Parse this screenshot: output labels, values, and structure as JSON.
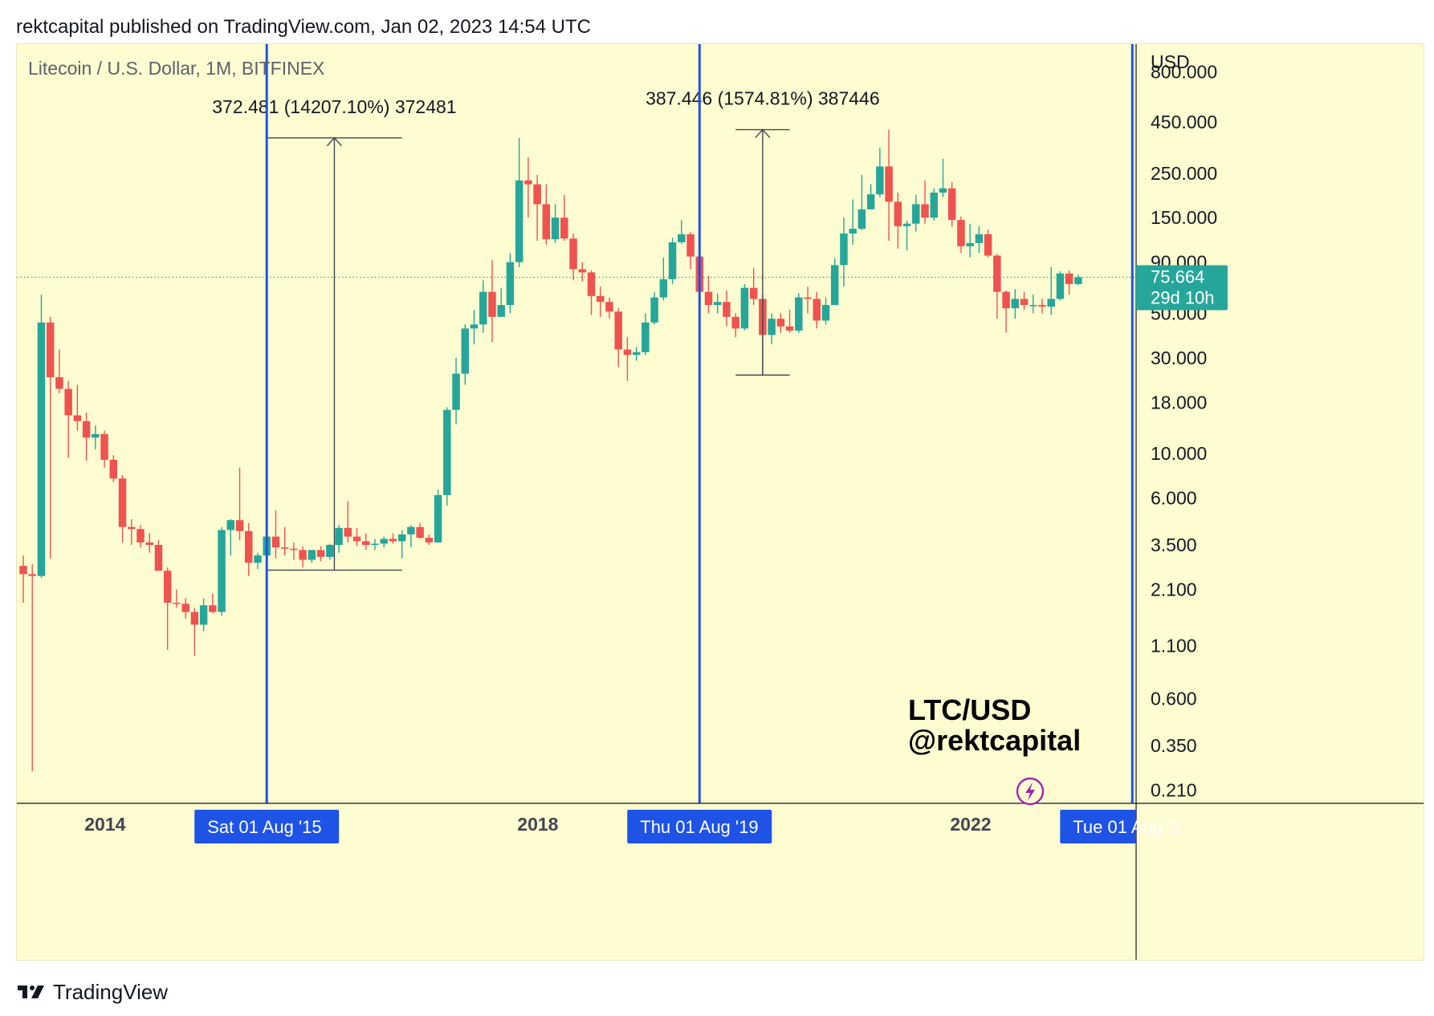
{
  "header": {
    "publisher_line": "rektcapital published on TradingView.com, Jan 02, 2023 14:54 UTC"
  },
  "footer": {
    "brand": "TradingView",
    "logo_icon": "tradingview-logo-icon"
  },
  "colors": {
    "background": "#fefdd2",
    "bull": "#26a69a",
    "bear": "#ef5350",
    "cycle_line": "#1e53e5",
    "price_badge": "#26a69a",
    "measure": "#434651",
    "accent_purple": "#9c27b0"
  },
  "chart_data": {
    "type": "candlestick",
    "symbol_title": "Litecoin / U.S. Dollar, 1M, BITFINEX",
    "currency": "USD",
    "y_scale": "log",
    "ylim": [
      0.18,
      1100
    ],
    "y_ticks": [
      "800.000",
      "450.000",
      "250.000",
      "150.000",
      "90.000",
      "50.000",
      "30.000",
      "18.000",
      "10.000",
      "6.000",
      "3.500",
      "2.100",
      "1.100",
      "0.600",
      "0.350",
      "0.210"
    ],
    "x_labels": [
      "2014",
      "2018",
      "2022"
    ],
    "last_price": {
      "value": "75.664",
      "countdown": "29d 10h",
      "numeric": 75.664
    },
    "cycle_lines": [
      {
        "date": "2015-08",
        "label": "Sat 01 Aug '15"
      },
      {
        "date": "2019-08",
        "label": "Thu 01 Aug '19"
      },
      {
        "date": "2023-08",
        "label": "Tue 01 Aug '2"
      }
    ],
    "measurements": [
      {
        "label": "372.481 (14207.10%) 372481",
        "from": 2.62,
        "to": 375,
        "start": "2015-08",
        "end": "2016-11"
      },
      {
        "label": "387.446 (1574.81%) 387446",
        "from": 24.6,
        "to": 412,
        "start": "2019-12",
        "end": "2020-06"
      }
    ],
    "watermark": {
      "line1": "LTC/USD",
      "line2": "@rektcapital"
    },
    "candles": [
      {
        "t": "2013-05",
        "o": 2.75,
        "h": 3.1,
        "l": 1.8,
        "c": 2.5
      },
      {
        "t": "2013-06",
        "o": 2.5,
        "h": 2.8,
        "l": 0.26,
        "c": 2.45
      },
      {
        "t": "2013-07",
        "o": 2.45,
        "h": 62,
        "l": 2.4,
        "c": 45
      },
      {
        "t": "2013-08",
        "o": 45,
        "h": 48,
        "l": 3.0,
        "c": 24
      },
      {
        "t": "2013-09",
        "o": 24,
        "h": 33,
        "l": 20,
        "c": 21
      },
      {
        "t": "2013-10",
        "o": 21,
        "h": 23,
        "l": 9.5,
        "c": 15.5
      },
      {
        "t": "2013-11",
        "o": 15.5,
        "h": 22,
        "l": 13,
        "c": 14.5
      },
      {
        "t": "2013-12",
        "o": 14.5,
        "h": 16,
        "l": 9.2,
        "c": 12
      },
      {
        "t": "2014-01",
        "o": 12,
        "h": 13.8,
        "l": 10.5,
        "c": 12.5
      },
      {
        "t": "2014-02",
        "o": 12.5,
        "h": 13,
        "l": 8.5,
        "c": 9.3
      },
      {
        "t": "2014-03",
        "o": 9.3,
        "h": 9.8,
        "l": 7.2,
        "c": 7.5
      },
      {
        "t": "2014-04",
        "o": 7.5,
        "h": 7.8,
        "l": 3.6,
        "c": 4.3
      },
      {
        "t": "2014-05",
        "o": 4.3,
        "h": 4.7,
        "l": 3.5,
        "c": 4.2
      },
      {
        "t": "2014-06",
        "o": 4.2,
        "h": 4.4,
        "l": 3.4,
        "c": 3.6
      },
      {
        "t": "2014-07",
        "o": 3.6,
        "h": 4.0,
        "l": 3.2,
        "c": 3.5
      },
      {
        "t": "2014-08",
        "o": 3.5,
        "h": 3.7,
        "l": 2.6,
        "c": 2.6
      },
      {
        "t": "2014-09",
        "o": 2.6,
        "h": 2.7,
        "l": 1.05,
        "c": 1.8
      },
      {
        "t": "2014-10",
        "o": 1.8,
        "h": 2.1,
        "l": 1.7,
        "c": 1.78
      },
      {
        "t": "2014-11",
        "o": 1.78,
        "h": 1.9,
        "l": 1.5,
        "c": 1.62
      },
      {
        "t": "2014-12",
        "o": 1.62,
        "h": 1.7,
        "l": 0.98,
        "c": 1.4
      },
      {
        "t": "2015-01",
        "o": 1.4,
        "h": 1.9,
        "l": 1.3,
        "c": 1.75
      },
      {
        "t": "2015-02",
        "o": 1.75,
        "h": 2.0,
        "l": 1.6,
        "c": 1.62
      },
      {
        "t": "2015-03",
        "o": 1.62,
        "h": 4.3,
        "l": 1.55,
        "c": 4.15
      },
      {
        "t": "2015-04",
        "o": 4.15,
        "h": 4.7,
        "l": 3.1,
        "c": 4.65
      },
      {
        "t": "2015-05",
        "o": 4.65,
        "h": 8.5,
        "l": 3.7,
        "c": 4.1
      },
      {
        "t": "2015-06",
        "o": 4.1,
        "h": 4.5,
        "l": 2.45,
        "c": 2.85
      },
      {
        "t": "2015-07",
        "o": 2.85,
        "h": 3.2,
        "l": 2.65,
        "c": 3.1
      },
      {
        "t": "2015-08",
        "o": 3.1,
        "h": 3.9,
        "l": 2.9,
        "c": 3.85
      },
      {
        "t": "2015-09",
        "o": 3.85,
        "h": 5.2,
        "l": 3.0,
        "c": 3.4
      },
      {
        "t": "2015-10",
        "o": 3.4,
        "h": 4.3,
        "l": 3.1,
        "c": 3.35
      },
      {
        "t": "2015-11",
        "o": 3.35,
        "h": 3.6,
        "l": 2.95,
        "c": 3.3
      },
      {
        "t": "2015-12",
        "o": 3.3,
        "h": 3.45,
        "l": 2.7,
        "c": 2.95
      },
      {
        "t": "2016-01",
        "o": 2.95,
        "h": 3.3,
        "l": 2.85,
        "c": 3.3
      },
      {
        "t": "2016-02",
        "o": 3.3,
        "h": 3.45,
        "l": 2.9,
        "c": 3.05
      },
      {
        "t": "2016-03",
        "o": 3.05,
        "h": 3.55,
        "l": 2.95,
        "c": 3.5
      },
      {
        "t": "2016-04",
        "o": 3.5,
        "h": 4.4,
        "l": 3.2,
        "c": 4.25
      },
      {
        "t": "2016-05",
        "o": 4.25,
        "h": 5.8,
        "l": 3.6,
        "c": 3.85
      },
      {
        "t": "2016-06",
        "o": 3.85,
        "h": 4.25,
        "l": 3.45,
        "c": 3.65
      },
      {
        "t": "2016-07",
        "o": 3.65,
        "h": 4.0,
        "l": 3.3,
        "c": 3.5
      },
      {
        "t": "2016-08",
        "o": 3.5,
        "h": 3.75,
        "l": 3.3,
        "c": 3.55
      },
      {
        "t": "2016-09",
        "o": 3.55,
        "h": 3.85,
        "l": 3.4,
        "c": 3.75
      },
      {
        "t": "2016-10",
        "o": 3.75,
        "h": 4.0,
        "l": 3.55,
        "c": 3.65
      },
      {
        "t": "2016-11",
        "o": 3.65,
        "h": 4.15,
        "l": 3.0,
        "c": 3.95
      },
      {
        "t": "2016-12",
        "o": 3.95,
        "h": 4.4,
        "l": 3.4,
        "c": 4.3
      },
      {
        "t": "2017-01",
        "o": 4.3,
        "h": 4.5,
        "l": 3.75,
        "c": 3.8
      },
      {
        "t": "2017-02",
        "o": 3.8,
        "h": 3.95,
        "l": 3.5,
        "c": 3.6
      },
      {
        "t": "2017-03",
        "o": 3.6,
        "h": 6.6,
        "l": 3.6,
        "c": 6.2
      },
      {
        "t": "2017-04",
        "o": 6.2,
        "h": 17,
        "l": 5.5,
        "c": 16.5
      },
      {
        "t": "2017-05",
        "o": 16.5,
        "h": 30,
        "l": 14,
        "c": 25
      },
      {
        "t": "2017-06",
        "o": 25,
        "h": 44,
        "l": 22,
        "c": 42
      },
      {
        "t": "2017-07",
        "o": 42,
        "h": 52,
        "l": 35,
        "c": 44
      },
      {
        "t": "2017-08",
        "o": 44,
        "h": 73,
        "l": 40,
        "c": 64
      },
      {
        "t": "2017-09",
        "o": 64,
        "h": 92,
        "l": 36,
        "c": 48
      },
      {
        "t": "2017-10",
        "o": 48,
        "h": 67,
        "l": 48,
        "c": 55
      },
      {
        "t": "2017-11",
        "o": 55,
        "h": 100,
        "l": 50,
        "c": 90
      },
      {
        "t": "2017-12",
        "o": 90,
        "h": 375,
        "l": 85,
        "c": 230
      },
      {
        "t": "2018-01",
        "o": 230,
        "h": 300,
        "l": 150,
        "c": 220
      },
      {
        "t": "2018-02",
        "o": 220,
        "h": 245,
        "l": 115,
        "c": 175
      },
      {
        "t": "2018-03",
        "o": 175,
        "h": 220,
        "l": 110,
        "c": 117
      },
      {
        "t": "2018-04",
        "o": 117,
        "h": 175,
        "l": 112,
        "c": 150
      },
      {
        "t": "2018-05",
        "o": 150,
        "h": 195,
        "l": 115,
        "c": 118
      },
      {
        "t": "2018-06",
        "o": 118,
        "h": 125,
        "l": 73,
        "c": 83
      },
      {
        "t": "2018-07",
        "o": 83,
        "h": 90,
        "l": 72,
        "c": 80
      },
      {
        "t": "2018-08",
        "o": 80,
        "h": 82,
        "l": 49,
        "c": 61
      },
      {
        "t": "2018-09",
        "o": 61,
        "h": 68,
        "l": 48,
        "c": 57
      },
      {
        "t": "2018-10",
        "o": 57,
        "h": 60,
        "l": 47,
        "c": 51
      },
      {
        "t": "2018-11",
        "o": 51,
        "h": 53,
        "l": 27,
        "c": 33
      },
      {
        "t": "2018-12",
        "o": 33,
        "h": 38,
        "l": 23,
        "c": 31
      },
      {
        "t": "2019-01",
        "o": 31,
        "h": 34,
        "l": 29,
        "c": 32
      },
      {
        "t": "2019-02",
        "o": 32,
        "h": 50,
        "l": 31,
        "c": 45
      },
      {
        "t": "2019-03",
        "o": 45,
        "h": 64,
        "l": 44,
        "c": 60
      },
      {
        "t": "2019-04",
        "o": 60,
        "h": 95,
        "l": 58,
        "c": 74
      },
      {
        "t": "2019-05",
        "o": 74,
        "h": 119,
        "l": 70,
        "c": 113
      },
      {
        "t": "2019-06",
        "o": 113,
        "h": 146,
        "l": 111,
        "c": 124
      },
      {
        "t": "2019-07",
        "o": 124,
        "h": 127,
        "l": 83,
        "c": 96
      },
      {
        "t": "2019-08",
        "o": 96,
        "h": 105,
        "l": 60,
        "c": 64
      },
      {
        "t": "2019-09",
        "o": 64,
        "h": 77,
        "l": 50,
        "c": 55
      },
      {
        "t": "2019-10",
        "o": 55,
        "h": 63,
        "l": 50,
        "c": 57
      },
      {
        "t": "2019-11",
        "o": 57,
        "h": 65,
        "l": 43,
        "c": 48
      },
      {
        "t": "2019-12",
        "o": 48,
        "h": 50,
        "l": 38,
        "c": 42
      },
      {
        "t": "2020-01",
        "o": 42,
        "h": 70,
        "l": 41,
        "c": 67
      },
      {
        "t": "2020-02",
        "o": 67,
        "h": 84,
        "l": 55,
        "c": 59
      },
      {
        "t": "2020-03",
        "o": 59,
        "h": 62,
        "l": 24.6,
        "c": 39
      },
      {
        "t": "2020-04",
        "o": 39,
        "h": 50,
        "l": 35,
        "c": 47
      },
      {
        "t": "2020-05",
        "o": 47,
        "h": 50,
        "l": 40,
        "c": 43
      },
      {
        "t": "2020-06",
        "o": 43,
        "h": 52,
        "l": 40,
        "c": 41
      },
      {
        "t": "2020-07",
        "o": 41,
        "h": 63,
        "l": 40,
        "c": 60
      },
      {
        "t": "2020-08",
        "o": 60,
        "h": 68,
        "l": 50,
        "c": 59
      },
      {
        "t": "2020-09",
        "o": 59,
        "h": 64,
        "l": 42,
        "c": 46
      },
      {
        "t": "2020-10",
        "o": 46,
        "h": 60,
        "l": 44,
        "c": 55
      },
      {
        "t": "2020-11",
        "o": 55,
        "h": 94,
        "l": 55,
        "c": 87
      },
      {
        "t": "2020-12",
        "o": 87,
        "h": 150,
        "l": 68,
        "c": 125
      },
      {
        "t": "2021-01",
        "o": 125,
        "h": 185,
        "l": 110,
        "c": 132
      },
      {
        "t": "2021-02",
        "o": 132,
        "h": 245,
        "l": 130,
        "c": 165
      },
      {
        "t": "2021-03",
        "o": 165,
        "h": 220,
        "l": 165,
        "c": 196
      },
      {
        "t": "2021-04",
        "o": 196,
        "h": 335,
        "l": 190,
        "c": 270
      },
      {
        "t": "2021-05",
        "o": 270,
        "h": 412,
        "l": 115,
        "c": 180
      },
      {
        "t": "2021-06",
        "o": 180,
        "h": 200,
        "l": 105,
        "c": 136
      },
      {
        "t": "2021-07",
        "o": 136,
        "h": 145,
        "l": 103,
        "c": 140
      },
      {
        "t": "2021-08",
        "o": 140,
        "h": 195,
        "l": 128,
        "c": 175
      },
      {
        "t": "2021-09",
        "o": 175,
        "h": 230,
        "l": 140,
        "c": 150
      },
      {
        "t": "2021-10",
        "o": 150,
        "h": 210,
        "l": 145,
        "c": 200
      },
      {
        "t": "2021-11",
        "o": 200,
        "h": 295,
        "l": 190,
        "c": 210
      },
      {
        "t": "2021-12",
        "o": 210,
        "h": 225,
        "l": 135,
        "c": 146
      },
      {
        "t": "2022-01",
        "o": 146,
        "h": 152,
        "l": 100,
        "c": 108
      },
      {
        "t": "2022-02",
        "o": 108,
        "h": 140,
        "l": 95,
        "c": 112
      },
      {
        "t": "2022-03",
        "o": 112,
        "h": 136,
        "l": 100,
        "c": 124
      },
      {
        "t": "2022-04",
        "o": 124,
        "h": 131,
        "l": 95,
        "c": 97
      },
      {
        "t": "2022-05",
        "o": 97,
        "h": 99,
        "l": 47,
        "c": 64
      },
      {
        "t": "2022-06",
        "o": 64,
        "h": 65,
        "l": 40,
        "c": 53
      },
      {
        "t": "2022-07",
        "o": 53,
        "h": 66,
        "l": 47,
        "c": 59
      },
      {
        "t": "2022-08",
        "o": 59,
        "h": 64,
        "l": 52,
        "c": 55
      },
      {
        "t": "2022-09",
        "o": 55,
        "h": 62,
        "l": 50,
        "c": 55
      },
      {
        "t": "2022-10",
        "o": 55,
        "h": 59,
        "l": 50,
        "c": 54
      },
      {
        "t": "2022-11",
        "o": 54,
        "h": 85,
        "l": 49,
        "c": 59
      },
      {
        "t": "2022-12",
        "o": 59,
        "h": 81,
        "l": 58,
        "c": 79
      },
      {
        "t": "2023-01",
        "o": 79,
        "h": 82,
        "l": 62,
        "c": 70
      },
      {
        "t": "2023-02",
        "o": 70,
        "h": 78,
        "l": 69,
        "c": 75.66
      }
    ]
  }
}
